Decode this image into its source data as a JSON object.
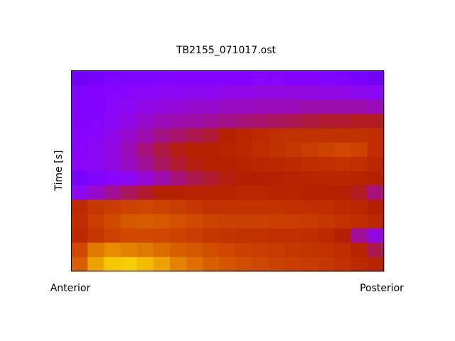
{
  "chart_data": {
    "type": "heatmap",
    "title": "TB2155_071017.ost",
    "ylabel": "Time [s]",
    "x_end_labels": [
      "Anterior",
      "Posterior"
    ],
    "colormap": "gnuplot",
    "values": [
      [
        0.2,
        0.22,
        0.24,
        0.25,
        0.25,
        0.25,
        0.26,
        0.26,
        0.26,
        0.26,
        0.26,
        0.27,
        0.27,
        0.26,
        0.26,
        0.25,
        0.24,
        0.23,
        0.2
      ],
      [
        0.24,
        0.26,
        0.27,
        0.28,
        0.29,
        0.3,
        0.3,
        0.31,
        0.31,
        0.32,
        0.32,
        0.33,
        0.33,
        0.33,
        0.33,
        0.32,
        0.32,
        0.31,
        0.3
      ],
      [
        0.25,
        0.26,
        0.28,
        0.3,
        0.32,
        0.33,
        0.34,
        0.35,
        0.35,
        0.36,
        0.36,
        0.37,
        0.37,
        0.37,
        0.38,
        0.38,
        0.38,
        0.38,
        0.37
      ],
      [
        0.26,
        0.27,
        0.3,
        0.32,
        0.35,
        0.37,
        0.38,
        0.39,
        0.4,
        0.41,
        0.42,
        0.43,
        0.44,
        0.45,
        0.46,
        0.47,
        0.47,
        0.48,
        0.48
      ],
      [
        0.27,
        0.28,
        0.32,
        0.35,
        0.38,
        0.41,
        0.43,
        0.45,
        0.47,
        0.5,
        0.53,
        0.55,
        0.57,
        0.58,
        0.58,
        0.58,
        0.58,
        0.58,
        0.56
      ],
      [
        0.28,
        0.3,
        0.33,
        0.37,
        0.42,
        0.46,
        0.49,
        0.5,
        0.51,
        0.52,
        0.54,
        0.56,
        0.58,
        0.6,
        0.62,
        0.64,
        0.66,
        0.64,
        0.56
      ],
      [
        0.29,
        0.3,
        0.33,
        0.36,
        0.4,
        0.44,
        0.47,
        0.49,
        0.5,
        0.51,
        0.52,
        0.53,
        0.54,
        0.55,
        0.56,
        0.57,
        0.58,
        0.57,
        0.54
      ],
      [
        0.22,
        0.25,
        0.28,
        0.3,
        0.34,
        0.38,
        0.42,
        0.45,
        0.47,
        0.49,
        0.5,
        0.5,
        0.51,
        0.52,
        0.52,
        0.53,
        0.53,
        0.52,
        0.5
      ],
      [
        0.3,
        0.35,
        0.4,
        0.44,
        0.47,
        0.5,
        0.51,
        0.52,
        0.52,
        0.52,
        0.53,
        0.53,
        0.52,
        0.52,
        0.51,
        0.51,
        0.5,
        0.48,
        0.42
      ],
      [
        0.55,
        0.6,
        0.62,
        0.64,
        0.65,
        0.64,
        0.62,
        0.6,
        0.58,
        0.58,
        0.58,
        0.58,
        0.58,
        0.57,
        0.57,
        0.56,
        0.55,
        0.54,
        0.5
      ],
      [
        0.56,
        0.62,
        0.66,
        0.7,
        0.71,
        0.7,
        0.68,
        0.66,
        0.64,
        0.63,
        0.63,
        0.63,
        0.62,
        0.62,
        0.61,
        0.6,
        0.58,
        0.56,
        0.54
      ],
      [
        0.55,
        0.6,
        0.64,
        0.66,
        0.66,
        0.65,
        0.64,
        0.62,
        0.6,
        0.59,
        0.58,
        0.58,
        0.57,
        0.57,
        0.56,
        0.55,
        0.5,
        0.4,
        0.33
      ],
      [
        0.66,
        0.78,
        0.82,
        0.8,
        0.78,
        0.75,
        0.72,
        0.7,
        0.67,
        0.65,
        0.63,
        0.62,
        0.61,
        0.6,
        0.59,
        0.58,
        0.56,
        0.52,
        0.45
      ],
      [
        0.72,
        0.86,
        0.92,
        0.93,
        0.9,
        0.86,
        0.8,
        0.76,
        0.72,
        0.69,
        0.67,
        0.65,
        0.63,
        0.62,
        0.61,
        0.6,
        0.58,
        0.55,
        0.52
      ]
    ]
  }
}
